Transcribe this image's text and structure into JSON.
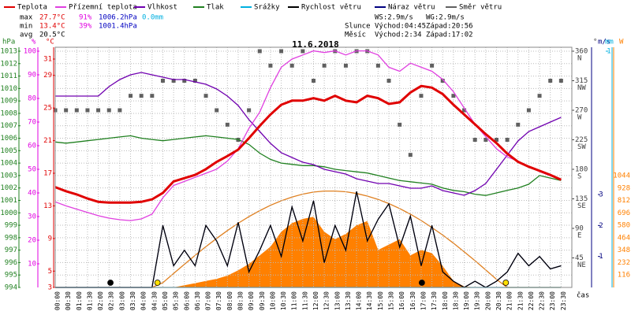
{
  "chart_data": {
    "type": "line",
    "title": "11.6.2018",
    "categories": [
      "00:00",
      "00:30",
      "01:00",
      "01:30",
      "02:00",
      "02:30",
      "03:00",
      "03:30",
      "04:00",
      "04:30",
      "05:00",
      "05:30",
      "06:00",
      "06:30",
      "07:00",
      "07:30",
      "08:00",
      "08:30",
      "09:00",
      "09:30",
      "10:00",
      "10:30",
      "11:00",
      "11:30",
      "12:00",
      "12:30",
      "13:00",
      "13:30",
      "14:00",
      "14:30",
      "15:00",
      "15:30",
      "16:00",
      "16:30",
      "17:00",
      "17:30",
      "18:00",
      "18:30",
      "19:00",
      "19:30",
      "20:00",
      "20:30",
      "21:00",
      "21:30",
      "22:00",
      "22:30",
      "23:00",
      "23:30"
    ],
    "xlabel": "čas",
    "ylim": [
      3,
      31
    ],
    "yticks": [
      3,
      5,
      9,
      13,
      17,
      21,
      25,
      29,
      31
    ],
    "yunit": "°C",
    "axes": {
      "pressure": {
        "lim": [
          994,
          1013
        ],
        "ticks": [
          994,
          995,
          996,
          997,
          998,
          999,
          1000,
          1001,
          1002,
          1003,
          1004,
          1005,
          1006,
          1007,
          1008,
          1009,
          1010,
          1011,
          1012,
          1013
        ],
        "unit": "hPa"
      },
      "humidity": {
        "lim": [
          0,
          100
        ],
        "ticks": [
          10,
          20,
          30,
          40,
          50,
          60,
          70,
          80,
          90,
          100
        ],
        "unit": "%"
      },
      "direction": {
        "lim": [
          0,
          360
        ],
        "ticks": [
          {
            "value": 45,
            "label": "45",
            "compass": "NE"
          },
          {
            "value": 90,
            "label": "90",
            "compass": "E"
          },
          {
            "value": 135,
            "label": "135",
            "compass": "SE"
          },
          {
            "value": 180,
            "label": "180",
            "compass": "S"
          },
          {
            "value": 225,
            "label": "225",
            "compass": "SW"
          },
          {
            "value": 270,
            "label": "270",
            "compass": "W"
          },
          {
            "value": 315,
            "label": "315",
            "compass": "NW"
          },
          {
            "value": 360,
            "label": "360",
            "compass": "N"
          }
        ],
        "unit": "°"
      },
      "wind": {
        "lim": [
          0,
          3
        ],
        "ticks": [
          1,
          2,
          3
        ],
        "unit": "m/s"
      },
      "rain": {
        "lim": [
          0,
          1
        ],
        "ticks": [
          1
        ],
        "unit": "mm"
      },
      "solar": {
        "lim": [
          0,
          1044
        ],
        "ticks": [
          116,
          232,
          348,
          464,
          580,
          696,
          812,
          928,
          1044
        ],
        "unit": "W"
      }
    },
    "grid": true,
    "series": [
      {
        "name": "Teplota",
        "color": "#e00000",
        "axis": "y",
        "values": [
          15.3,
          14.8,
          14.4,
          13.9,
          13.5,
          13.4,
          13.4,
          13.4,
          13.5,
          13.8,
          14.6,
          16.0,
          16.4,
          16.8,
          17.5,
          18.4,
          19.1,
          19.9,
          21.3,
          22.8,
          24.2,
          25.4,
          25.9,
          25.9,
          26.2,
          25.9,
          26.5,
          25.9,
          25.7,
          26.5,
          26.2,
          25.5,
          25.7,
          26.9,
          27.7,
          27.5,
          26.7,
          25.4,
          24.2,
          23.0,
          21.8,
          20.7,
          19.4,
          18.4,
          17.8,
          17.3,
          16.8,
          16.2
        ]
      },
      {
        "name": "Přízemní teplota",
        "color": "#e040e0",
        "axis": "y",
        "values": [
          13.5,
          13.0,
          12.6,
          12.2,
          11.8,
          11.5,
          11.3,
          11.2,
          11.4,
          12.0,
          14.0,
          15.5,
          16.0,
          16.5,
          17.0,
          17.5,
          18.5,
          20.0,
          22.5,
          24.5,
          27.5,
          30.0,
          31.0,
          31.5,
          32.0,
          31.8,
          32.0,
          31.5,
          32.0,
          32.0,
          31.5,
          30.0,
          29.5,
          30.5,
          30.0,
          29.5,
          28.5,
          27.0,
          25.0,
          23.0,
          21.5,
          20.0,
          19.0,
          18.5,
          17.8,
          17.2,
          16.7,
          16.2
        ]
      },
      {
        "name": "Vlhkost",
        "color": "#7000b0",
        "axis": "humidity",
        "values": [
          81,
          81,
          81,
          81,
          81,
          85,
          88,
          90,
          91,
          90,
          89,
          88,
          88,
          87,
          86,
          84,
          81,
          77,
          71,
          66,
          61,
          57,
          55,
          53,
          52,
          50,
          49,
          48,
          46,
          45,
          44,
          44,
          43,
          42,
          42,
          43,
          41,
          40,
          39,
          41,
          44,
          50,
          56,
          62,
          66,
          68,
          70,
          72
        ]
      },
      {
        "name": "Tlak",
        "color": "#208020",
        "axis": "pressure",
        "values": [
          1005.7,
          1005.6,
          1005.7,
          1005.8,
          1005.9,
          1006.0,
          1006.1,
          1006.2,
          1006.0,
          1005.9,
          1005.8,
          1005.9,
          1006.0,
          1006.1,
          1006.2,
          1006.1,
          1006.0,
          1005.9,
          1005.5,
          1004.8,
          1004.3,
          1004.0,
          1003.9,
          1003.8,
          1003.8,
          1003.7,
          1003.5,
          1003.4,
          1003.3,
          1003.2,
          1003.0,
          1002.8,
          1002.6,
          1002.5,
          1002.4,
          1002.3,
          1002.0,
          1001.8,
          1001.7,
          1001.5,
          1001.4,
          1001.6,
          1001.8,
          1002.0,
          1002.3,
          1003.0,
          1002.8,
          1002.6
        ]
      },
      {
        "name": "Srážky",
        "color": "#00b0e0",
        "axis": "rain",
        "values": [
          0,
          0,
          0,
          0,
          0,
          0,
          0,
          0,
          0,
          0,
          0,
          0,
          0,
          0,
          0,
          0,
          0,
          0,
          0,
          0,
          0,
          0,
          0,
          0,
          0,
          0,
          0,
          0,
          0,
          0,
          0,
          0,
          0,
          0,
          0,
          0,
          0,
          0,
          0,
          0,
          0,
          0,
          0,
          0,
          0,
          0,
          0,
          0
        ]
      },
      {
        "name": "Rychlost větru",
        "color": "#000000",
        "axis": "wind",
        "values": [
          0,
          0,
          0,
          0,
          0,
          0,
          0,
          0,
          0,
          0,
          2.0,
          0.7,
          1.2,
          0.7,
          2.0,
          1.5,
          0.7,
          2.1,
          0.5,
          1.2,
          2.0,
          1.0,
          2.6,
          1.5,
          2.8,
          0.8,
          2.0,
          1.2,
          3.1,
          1.5,
          2.2,
          2.7,
          1.3,
          2.3,
          0.7,
          2.0,
          0.5,
          0.2,
          0,
          0.2,
          0,
          0.2,
          0.5,
          1.1,
          0.7,
          1.0,
          0.6,
          0.7
        ]
      },
      {
        "name": "Náraz větru",
        "color": "#000080",
        "axis": "wind",
        "values": [
          0,
          0,
          0,
          0,
          0,
          0,
          0,
          0,
          0,
          0,
          2.0,
          0.7,
          1.2,
          0.7,
          2.0,
          1.5,
          0.7,
          2.1,
          0.5,
          1.2,
          2.0,
          1.0,
          2.6,
          1.5,
          2.8,
          0.8,
          2.0,
          1.2,
          3.1,
          1.5,
          2.2,
          2.7,
          1.3,
          2.3,
          0.7,
          2.0,
          0.5,
          0.2,
          0,
          0.2,
          0,
          0.2,
          0.5,
          1.1,
          0.7,
          1.0,
          0.6,
          0.7
        ]
      },
      {
        "name": "Směr větru",
        "color": "#606060",
        "axis": "direction",
        "type": "scatter",
        "values": [
          270,
          270,
          270,
          270,
          270,
          270,
          270,
          292,
          292,
          292,
          315,
          315,
          315,
          315,
          292,
          270,
          248,
          225,
          270,
          360,
          338,
          360,
          338,
          360,
          315,
          338,
          360,
          338,
          360,
          360,
          338,
          315,
          248,
          202,
          292,
          338,
          315,
          292,
          270,
          225,
          225,
          225,
          225,
          248,
          270,
          292,
          315,
          315
        ]
      },
      {
        "color": "#ff8000",
        "axis": "solar",
        "type": "area",
        "values": [
          0,
          0,
          0,
          0,
          0,
          0,
          0,
          0,
          0,
          0,
          0,
          0,
          20,
          40,
          60,
          80,
          110,
          160,
          220,
          300,
          380,
          520,
          600,
          640,
          660,
          520,
          450,
          500,
          580,
          620,
          350,
          400,
          450,
          300,
          350,
          320,
          200,
          60,
          10,
          0,
          0,
          0,
          0,
          0,
          0,
          0,
          0,
          0
        ]
      },
      {
        "color": "#e08020",
        "axis": "solar",
        "values": [
          0,
          0,
          0,
          0,
          0,
          0,
          0,
          0,
          0,
          0,
          44,
          130,
          216,
          300,
          381,
          458,
          531,
          599,
          661,
          717,
          767,
          809,
          844,
          871,
          890,
          900,
          900,
          893,
          877,
          853,
          822,
          783,
          737,
          684,
          625,
          559,
          489,
          413,
          333,
          250,
          163,
          75,
          0,
          0,
          0,
          0,
          0,
          0
        ]
      }
    ],
    "stats": {
      "max": {
        "label": "max",
        "values": [
          {
            "text": "27.7°C",
            "color": "#e00000"
          },
          {
            "text": "91%",
            "color": "#e000e0"
          },
          {
            "text": "1006.2hPa",
            "color": "#0000c0"
          },
          {
            "text": "0.0mm",
            "color": "#00b0e0"
          }
        ]
      },
      "min": {
        "label": "min",
        "values": [
          {
            "text": "13.4°C",
            "color": "#e00000"
          },
          {
            "text": "39%",
            "color": "#e000e0"
          },
          {
            "text": "1001.4hPa",
            "color": "#0000c0"
          }
        ]
      },
      "avg": {
        "label": "avg",
        "values": [
          {
            "text": "20.5°C",
            "color": "#000000"
          }
        ]
      }
    },
    "wind_info": {
      "ws": "WS:2.9m/s",
      "wg": "WG:2.9m/s"
    },
    "sun": {
      "label": "Slunce",
      "rise": "Východ:04:45",
      "set": "Západ:20:56"
    },
    "moon": {
      "label": "Měsíc",
      "rise": "Východ:2:34",
      "set": "Západ:17:02"
    }
  }
}
